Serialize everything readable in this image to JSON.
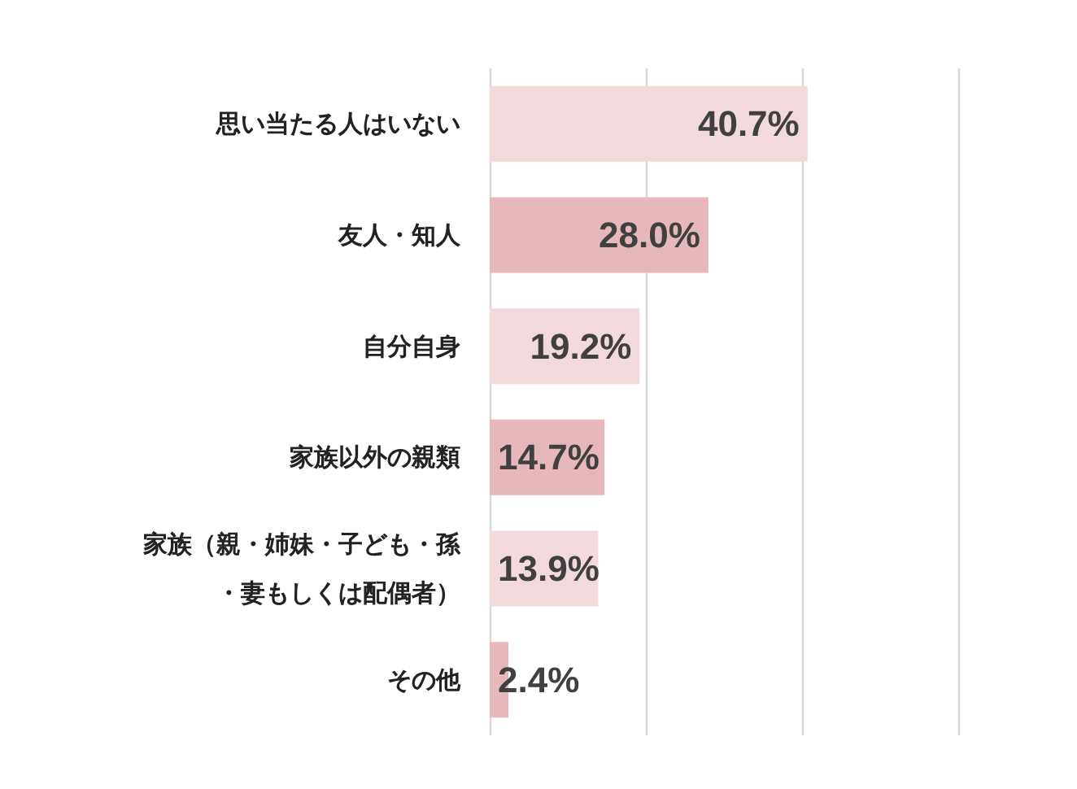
{
  "chart_data": {
    "type": "bar",
    "orientation": "horizontal",
    "categories": [
      "思い当たる人はいない",
      "友人・知人",
      "自分自身",
      "家族以外の親類",
      "家族（親・姉妹・子ども・孫・妻もしくは配偶者）",
      "その他"
    ],
    "values": [
      40.7,
      28.0,
      19.2,
      14.7,
      13.9,
      2.4
    ],
    "colors": [
      "#f2dadc",
      "#e6b8bb",
      "#f2dadc",
      "#e6b8bb",
      "#f2dadc",
      "#e6b8bb"
    ],
    "value_labels": [
      "40.7%",
      "28.0%",
      "19.2%",
      "14.7%",
      "13.9%",
      "2.4%"
    ],
    "xlim": [
      0,
      60
    ],
    "xticks": [
      {
        "value": 0,
        "label": null
      },
      {
        "value": 20,
        "label": null
      },
      {
        "value": 40,
        "label": null
      },
      {
        "value": 60,
        "label": null
      }
    ],
    "grid": "x",
    "tick_labels": "y"
  }
}
